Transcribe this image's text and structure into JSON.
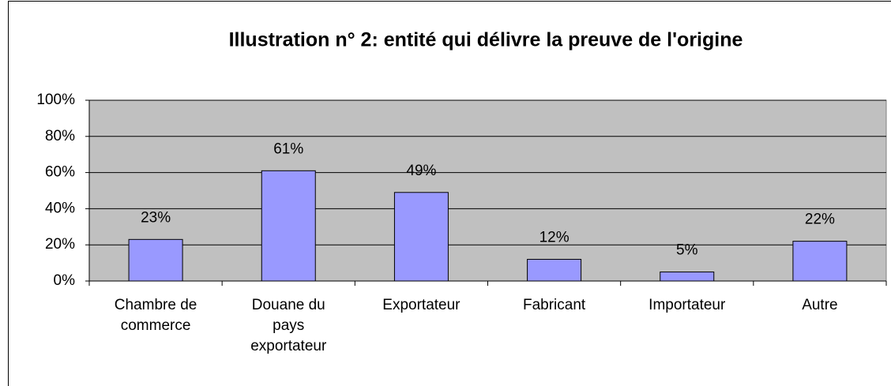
{
  "chart_data": {
    "type": "bar",
    "title": "Illustration n° 2: entité qui délivre la preuve de l'origine",
    "categories": [
      "Chambre de commerce",
      "Douane du pays exportateur",
      "Exportateur",
      "Fabricant",
      "Importateur",
      "Autre"
    ],
    "values": [
      23,
      61,
      49,
      12,
      5,
      22
    ],
    "value_labels": [
      "23%",
      "61%",
      "49%",
      "12%",
      "5%",
      "22%"
    ],
    "color": "#9999ff",
    "ylim": [
      0,
      100
    ],
    "yticks": [
      {
        "value": 0,
        "label": "0%"
      },
      {
        "value": 20,
        "label": "20%"
      },
      {
        "value": 40,
        "label": "40%"
      },
      {
        "value": 60,
        "label": "60%"
      },
      {
        "value": 80,
        "label": "80%"
      },
      {
        "value": 100,
        "label": "100%"
      }
    ],
    "grid": true
  }
}
